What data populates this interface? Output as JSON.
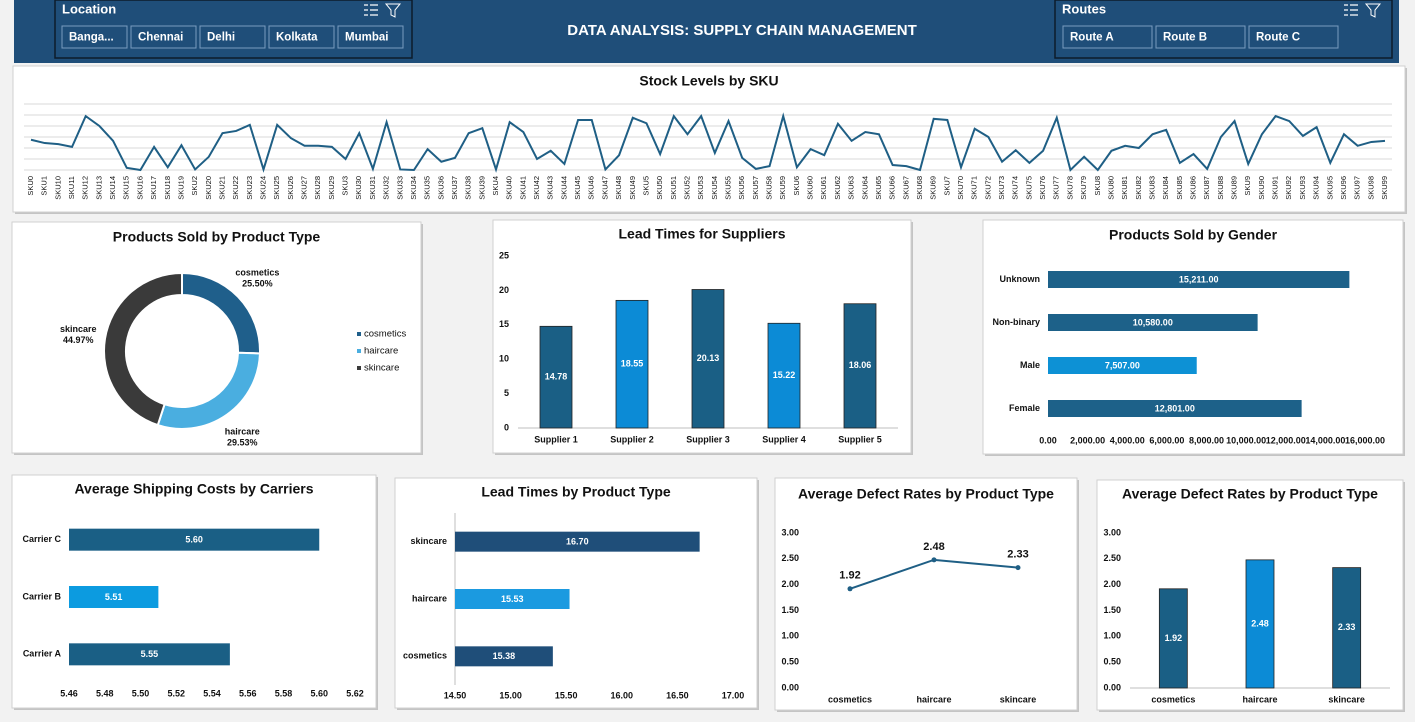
{
  "header": {
    "title": "DATA ANALYSIS: SUPPLY CHAIN MANAGEMENT",
    "slicers": [
      {
        "title": "Location",
        "items": [
          "Banga...",
          "Chennai",
          "Delhi",
          "Kolkata",
          "Mumbai"
        ]
      },
      {
        "title": "Routes",
        "items": [
          "Route A",
          "Route B",
          "Route C"
        ]
      }
    ]
  },
  "chart_data": [
    {
      "type": "line",
      "title": "Stock Levels by SKU",
      "categories": [
        "SKU0",
        "SKU1",
        "SKU10",
        "SKU11",
        "SKU12",
        "SKU13",
        "SKU14",
        "SKU15",
        "SKU16",
        "SKU17",
        "SKU18",
        "SKU19",
        "SKU2",
        "SKU20",
        "SKU21",
        "SKU22",
        "SKU23",
        "SKU24",
        "SKU25",
        "SKU26",
        "SKU27",
        "SKU28",
        "SKU29",
        "SKU3",
        "SKU30",
        "SKU31",
        "SKU32",
        "SKU33",
        "SKU34",
        "SKU35",
        "SKU36",
        "SKU37",
        "SKU38",
        "SKU39",
        "SKU4",
        "SKU40",
        "SKU41",
        "SKU42",
        "SKU43",
        "SKU44",
        "SKU45",
        "SKU46",
        "SKU47",
        "SKU48",
        "SKU49",
        "SKU5",
        "SKU50",
        "SKU51",
        "SKU52",
        "SKU53",
        "SKU54",
        "SKU55",
        "SKU56",
        "SKU57",
        "SKU58",
        "SKU59",
        "SKU6",
        "SKU60",
        "SKU61",
        "SKU62",
        "SKU63",
        "SKU64",
        "SKU65",
        "SKU66",
        "SKU67",
        "SKU68",
        "SKU69",
        "SKU7",
        "SKU70",
        "SKU71",
        "SKU72",
        "SKU73",
        "SKU74",
        "SKU75",
        "SKU76",
        "SKU77",
        "SKU78",
        "SKU79",
        "SKU8",
        "SKU80",
        "SKU81",
        "SKU82",
        "SKU83",
        "SKU84",
        "SKU85",
        "SKU86",
        "SKU87",
        "SKU88",
        "SKU89",
        "SKU9",
        "SKU90",
        "SKU91",
        "SKU92",
        "SKU93",
        "SKU94",
        "SKU95",
        "SKU96",
        "SKU97",
        "SKU98",
        "SKU99"
      ],
      "values": [
        55,
        49,
        47,
        42,
        98,
        80,
        53,
        4,
        0,
        42,
        5,
        45,
        1,
        24,
        67,
        71,
        82,
        1,
        82,
        58,
        44,
        44,
        42,
        20,
        67,
        2,
        87,
        1,
        0,
        38,
        15,
        22,
        67,
        76,
        1,
        87,
        69,
        20,
        35,
        11,
        91,
        91,
        1,
        27,
        95,
        85,
        29,
        98,
        65,
        98,
        31,
        89,
        22,
        2,
        7,
        98,
        5,
        38,
        27,
        84,
        53,
        69,
        65,
        9,
        7,
        0,
        93,
        91,
        5,
        75,
        60,
        15,
        36,
        13,
        35,
        95,
        0,
        24,
        0,
        35,
        44,
        40,
        65,
        73,
        13,
        29,
        2,
        60,
        89,
        11,
        65,
        98,
        89,
        62,
        78,
        13,
        65,
        44,
        51,
        53
      ],
      "color": "#1f5f85",
      "ylim": [
        0,
        120
      ],
      "yticks": [
        0,
        20,
        40,
        60,
        80,
        100,
        120
      ],
      "ytick_labels": false,
      "grid": true
    },
    {
      "type": "donut",
      "title": "Products Sold by Product Type",
      "categories": [
        "cosmetics",
        "haircare",
        "skincare"
      ],
      "values": [
        25.5,
        29.53,
        44.97
      ],
      "value_labels": [
        "25.50%",
        "29.53%",
        "44.97%"
      ],
      "colors": [
        "#1f5f8b",
        "#4aaee0",
        "#3a3a3a"
      ],
      "legend": "right"
    },
    {
      "type": "bar",
      "title": "Lead Times for Suppliers",
      "categories": [
        "Supplier 1",
        "Supplier 2",
        "Supplier 3",
        "Supplier 4",
        "Supplier 5"
      ],
      "values": [
        14.78,
        18.55,
        20.13,
        15.22,
        18.06
      ],
      "colors": [
        "#1a5f85",
        "#0c8bd6",
        "#1a5f85",
        "#0c8bd6",
        "#1a5f85"
      ],
      "ylim": [
        0,
        25
      ],
      "yticks": [
        0,
        5,
        10,
        15,
        20,
        25
      ],
      "data_labels": true
    },
    {
      "type": "bar",
      "horizontal": true,
      "title": "Products Sold by Gender",
      "categories": [
        "Female",
        "Male",
        "Non-binary",
        "Unknown"
      ],
      "values": [
        12801,
        7507,
        10580,
        15211
      ],
      "value_labels": [
        "12,801.00",
        "7,507.00",
        "10,580.00",
        "15,211.00"
      ],
      "colors": [
        "#1d6189",
        "#0d91d5",
        "#1d6189",
        "#1d6189"
      ],
      "xlim": [
        0,
        16000
      ],
      "xticks": [
        {
          "value": 0,
          "label": "0.00"
        },
        {
          "value": 2000,
          "label": "2,000.00"
        },
        {
          "value": 4000,
          "label": "4,000.00"
        },
        {
          "value": 6000,
          "label": "6,000.00"
        },
        {
          "value": 8000,
          "label": "8,000.00"
        },
        {
          "value": 10000,
          "label": "10,000.00"
        },
        {
          "value": 12000,
          "label": "12,000.00"
        },
        {
          "value": 14000,
          "label": "14,000.00"
        },
        {
          "value": 16000,
          "label": "16,000.00"
        }
      ],
      "data_labels": true
    },
    {
      "type": "bar",
      "horizontal": true,
      "title": "Average Shipping Costs by Carriers",
      "categories": [
        "Carrier A",
        "Carrier B",
        "Carrier C"
      ],
      "values": [
        5.55,
        5.51,
        5.6
      ],
      "value_labels": [
        "5.55",
        "5.51",
        "5.60"
      ],
      "colors": [
        "#1a5f85",
        "#0c9be0",
        "#1a5f85"
      ],
      "xlim": [
        5.46,
        5.62
      ],
      "xticks": [
        5.46,
        5.48,
        {
          "value": 5.5,
          "label": "5.50"
        },
        5.52,
        5.54,
        5.56,
        5.58,
        {
          "value": 5.6,
          "label": "5.60"
        },
        5.62
      ],
      "data_labels": true
    },
    {
      "type": "bar",
      "horizontal": true,
      "title": "Lead Times by Product Type",
      "categories": [
        "cosmetics",
        "haircare",
        "skincare"
      ],
      "values": [
        15.38,
        15.53,
        16.7
      ],
      "value_labels": [
        "15.38",
        "15.53",
        "16.70"
      ],
      "colors": [
        "#1f4e79",
        "#1b9ae0",
        "#1f4e79"
      ],
      "xlim": [
        14.5,
        17
      ],
      "xticks": [
        {
          "value": 14.5,
          "label": "14.50"
        },
        {
          "value": 15,
          "label": "15.00"
        },
        {
          "value": 15.5,
          "label": "15.50"
        },
        {
          "value": 16,
          "label": "16.00"
        },
        {
          "value": 16.5,
          "label": "16.50"
        },
        {
          "value": 17,
          "label": "17.00"
        }
      ],
      "data_labels": true
    },
    {
      "type": "line",
      "title": "Average Defect Rates by Product Type",
      "categories": [
        "cosmetics",
        "haircare",
        "skincare"
      ],
      "values": [
        1.92,
        2.48,
        2.33
      ],
      "color": "#1f5f85",
      "ylim": [
        0,
        3
      ],
      "yticks": [
        {
          "value": 0,
          "label": "0.00"
        },
        {
          "value": 0.5,
          "label": "0.50"
        },
        {
          "value": 1,
          "label": "1.00"
        },
        {
          "value": 1.5,
          "label": "1.50"
        },
        {
          "value": 2,
          "label": "2.00"
        },
        {
          "value": 2.5,
          "label": "2.50"
        },
        {
          "value": 3,
          "label": "3.00"
        }
      ],
      "data_labels": true,
      "markers": true
    },
    {
      "type": "bar",
      "title": "Average Defect Rates by Product Type",
      "categories": [
        "cosmetics",
        "haircare",
        "skincare"
      ],
      "values": [
        1.92,
        2.48,
        2.33
      ],
      "colors": [
        "#1a5f85",
        "#0c8bd6",
        "#1a5f85"
      ],
      "ylim": [
        0,
        3
      ],
      "yticks": [
        {
          "value": 0,
          "label": "0.00"
        },
        {
          "value": 0.5,
          "label": "0.50"
        },
        {
          "value": 1,
          "label": "1.00"
        },
        {
          "value": 1.5,
          "label": "1.50"
        },
        {
          "value": 2,
          "label": "2.00"
        },
        {
          "value": 2.5,
          "label": "2.50"
        },
        {
          "value": 3,
          "label": "3.00"
        }
      ],
      "data_labels": true
    }
  ]
}
